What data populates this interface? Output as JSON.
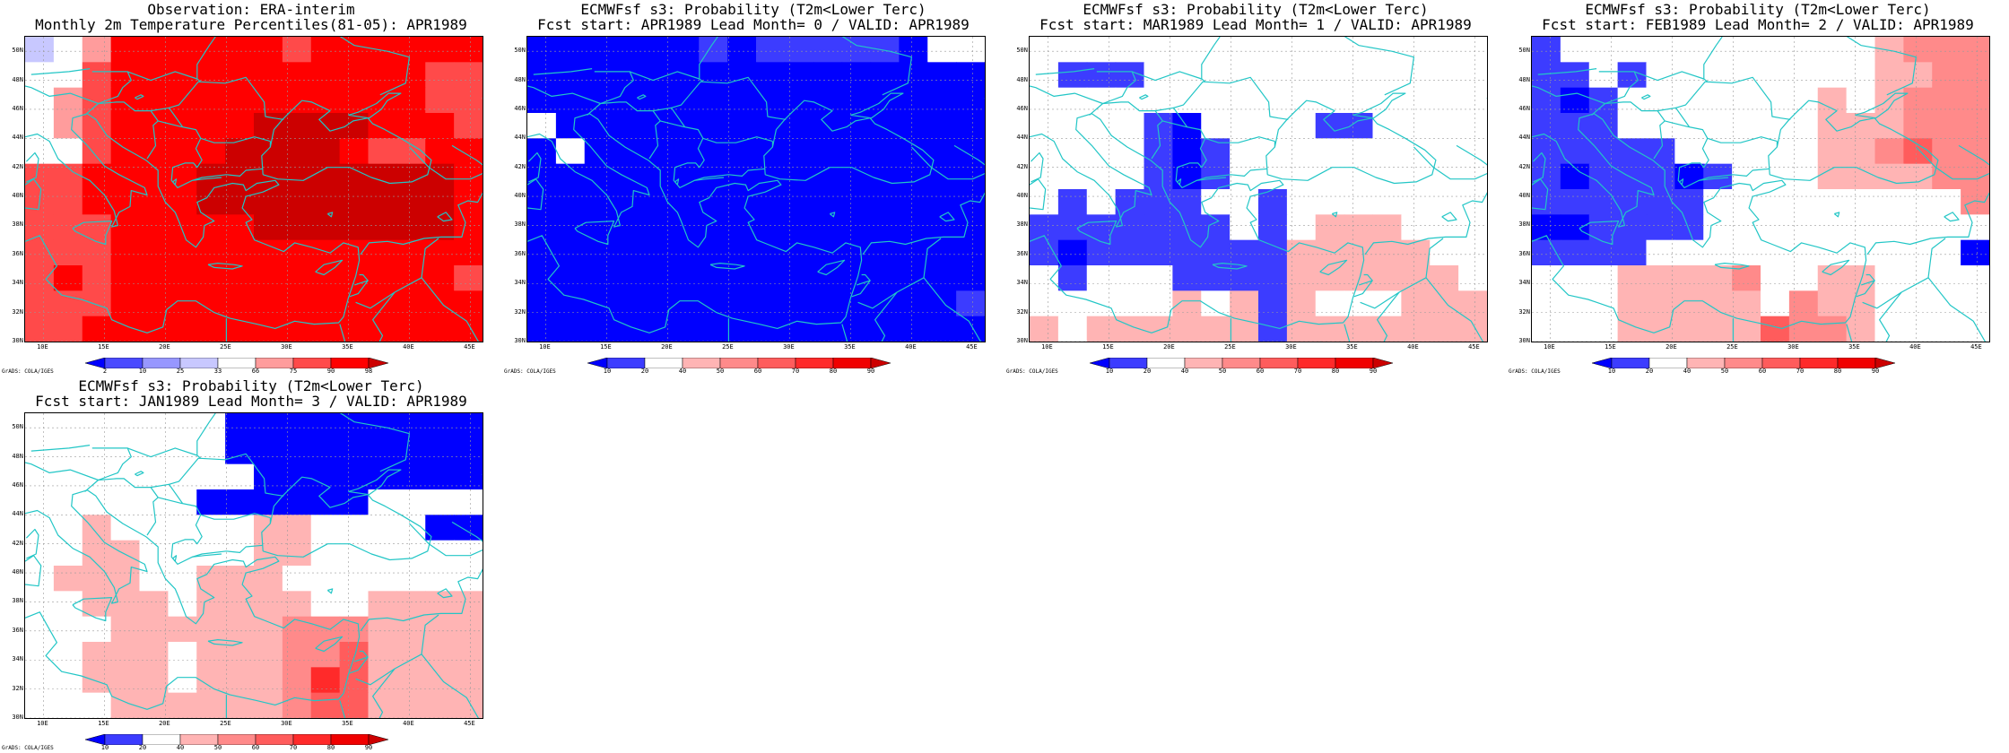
{
  "credit": "GrADS: COLA/IGES",
  "x_ticks": [
    "10E",
    "15E",
    "20E",
    "25E",
    "30E",
    "35E",
    "40E",
    "45E"
  ],
  "y_ticks": [
    "50N",
    "48N",
    "46N",
    "44N",
    "42N",
    "40N",
    "38N",
    "36N",
    "34N",
    "32N",
    "30N"
  ],
  "coastline_color": "#22c6c6",
  "colorbars": {
    "percentile": {
      "labels": [
        "2",
        "10",
        "25",
        "33",
        "66",
        "75",
        "90",
        "98"
      ],
      "colors": [
        "#0000ff",
        "#4a4aff",
        "#9797ff",
        "#c8c8ff",
        "#ffffff",
        "#ff9c9c",
        "#ff4a4a",
        "#ff0000",
        "#cc0000"
      ]
    },
    "probability": {
      "labels": [
        "10",
        "20",
        "40",
        "50",
        "60",
        "70",
        "80",
        "90"
      ],
      "colors": [
        "#0000ff",
        "#3c3cff",
        "#ffffff",
        "#ffb4b4",
        "#ff8a8a",
        "#ff5c5c",
        "#ff2a2a",
        "#f00000",
        "#cc0000"
      ]
    }
  },
  "panels": [
    {
      "title_line1": "Observation: ERA-interim",
      "title_line2": "Monthly 2m Temperature Percentiles(81-05): APR1989",
      "colorbar": "percentile",
      "grid": [
        [
          3,
          4,
          5,
          7,
          7,
          7,
          7,
          7,
          7,
          6,
          7,
          7,
          7,
          7,
          7,
          7
        ],
        [
          4,
          4,
          6,
          7,
          7,
          7,
          7,
          7,
          7,
          7,
          7,
          7,
          7,
          7,
          6,
          6
        ],
        [
          4,
          5,
          6,
          7,
          7,
          7,
          7,
          7,
          7,
          7,
          7,
          7,
          7,
          7,
          6,
          6
        ],
        [
          4,
          5,
          6,
          7,
          7,
          7,
          7,
          7,
          8,
          8,
          8,
          8,
          7,
          7,
          7,
          6
        ],
        [
          4,
          4,
          6,
          7,
          7,
          7,
          7,
          8,
          8,
          8,
          8,
          7,
          6,
          6,
          7,
          7
        ],
        [
          6,
          6,
          7,
          7,
          7,
          7,
          8,
          8,
          8,
          8,
          8,
          8,
          8,
          8,
          8,
          7
        ],
        [
          6,
          6,
          7,
          7,
          7,
          7,
          8,
          8,
          8,
          8,
          8,
          8,
          8,
          8,
          8,
          7
        ],
        [
          6,
          6,
          6,
          7,
          7,
          7,
          7,
          7,
          8,
          8,
          8,
          8,
          8,
          8,
          8,
          7
        ],
        [
          6,
          6,
          6,
          7,
          7,
          7,
          7,
          7,
          7,
          7,
          7,
          7,
          7,
          7,
          7,
          7
        ],
        [
          6,
          7,
          6,
          7,
          7,
          7,
          7,
          7,
          7,
          7,
          7,
          7,
          7,
          7,
          7,
          6
        ],
        [
          6,
          6,
          6,
          7,
          7,
          7,
          7,
          7,
          7,
          7,
          7,
          7,
          7,
          7,
          7,
          7
        ],
        [
          6,
          6,
          7,
          7,
          7,
          7,
          7,
          7,
          7,
          7,
          7,
          7,
          7,
          7,
          7,
          7
        ]
      ]
    },
    {
      "title_line1": "ECMWFsf s3: Probability (T2m<Lower Terc)",
      "title_line2": "Fcst start: APR1989  Lead Month= 0 / VALID: APR1989",
      "colorbar": "probability",
      "grid": [
        [
          0,
          0,
          0,
          0,
          0,
          0,
          1,
          0,
          1,
          1,
          1,
          1,
          1,
          0,
          2,
          2
        ],
        [
          0,
          0,
          0,
          0,
          0,
          0,
          0,
          0,
          0,
          0,
          0,
          0,
          0,
          0,
          0,
          0
        ],
        [
          0,
          0,
          0,
          0,
          0,
          0,
          0,
          0,
          0,
          0,
          0,
          0,
          0,
          0,
          0,
          0
        ],
        [
          2,
          0,
          0,
          0,
          0,
          0,
          0,
          0,
          0,
          0,
          0,
          0,
          0,
          0,
          0,
          0
        ],
        [
          0,
          2,
          0,
          0,
          0,
          0,
          0,
          0,
          0,
          0,
          0,
          0,
          0,
          0,
          0,
          0
        ],
        [
          0,
          0,
          0,
          0,
          0,
          0,
          0,
          0,
          0,
          0,
          0,
          0,
          0,
          0,
          0,
          0
        ],
        [
          0,
          0,
          0,
          0,
          0,
          0,
          0,
          0,
          0,
          0,
          0,
          0,
          0,
          0,
          0,
          0
        ],
        [
          0,
          0,
          0,
          0,
          0,
          0,
          0,
          0,
          0,
          0,
          0,
          0,
          0,
          0,
          0,
          0
        ],
        [
          0,
          0,
          0,
          0,
          0,
          0,
          0,
          0,
          0,
          0,
          0,
          0,
          0,
          0,
          0,
          0
        ],
        [
          0,
          0,
          0,
          0,
          0,
          0,
          0,
          0,
          0,
          0,
          0,
          0,
          0,
          0,
          0,
          0
        ],
        [
          0,
          0,
          0,
          0,
          0,
          0,
          0,
          0,
          0,
          0,
          0,
          0,
          0,
          0,
          0,
          1
        ],
        [
          0,
          0,
          0,
          0,
          0,
          0,
          0,
          0,
          0,
          0,
          0,
          0,
          0,
          0,
          0,
          0
        ]
      ]
    },
    {
      "title_line1": "ECMWFsf s3: Probability (T2m<Lower Terc)",
      "title_line2": "Fcst start: MAR1989  Lead Month= 1 / VALID: APR1989",
      "colorbar": "probability",
      "grid": [
        [
          2,
          2,
          2,
          2,
          2,
          2,
          2,
          2,
          2,
          2,
          2,
          2,
          2,
          2,
          2,
          2
        ],
        [
          2,
          1,
          1,
          1,
          2,
          2,
          2,
          2,
          2,
          2,
          2,
          2,
          2,
          2,
          2,
          2
        ],
        [
          2,
          2,
          2,
          2,
          2,
          2,
          2,
          2,
          2,
          2,
          2,
          2,
          2,
          2,
          2,
          2
        ],
        [
          2,
          2,
          2,
          2,
          1,
          0,
          2,
          2,
          2,
          2,
          1,
          1,
          2,
          2,
          2,
          2
        ],
        [
          2,
          2,
          2,
          2,
          1,
          0,
          1,
          2,
          2,
          2,
          2,
          2,
          2,
          2,
          2,
          2
        ],
        [
          2,
          2,
          2,
          2,
          1,
          0,
          1,
          2,
          2,
          2,
          2,
          2,
          2,
          2,
          2,
          2
        ],
        [
          2,
          1,
          2,
          1,
          1,
          1,
          2,
          2,
          1,
          2,
          2,
          2,
          2,
          2,
          2,
          2
        ],
        [
          1,
          1,
          1,
          1,
          1,
          1,
          1,
          2,
          1,
          2,
          3,
          3,
          3,
          2,
          2,
          2
        ],
        [
          1,
          0,
          1,
          1,
          1,
          1,
          1,
          1,
          1,
          3,
          3,
          3,
          3,
          3,
          2,
          2
        ],
        [
          2,
          1,
          2,
          2,
          2,
          1,
          1,
          1,
          1,
          3,
          3,
          3,
          3,
          3,
          3,
          2
        ],
        [
          2,
          2,
          2,
          2,
          2,
          3,
          2,
          3,
          1,
          3,
          2,
          2,
          2,
          3,
          3,
          3
        ],
        [
          3,
          2,
          3,
          3,
          3,
          3,
          3,
          3,
          1,
          3,
          3,
          3,
          3,
          3,
          3,
          3
        ]
      ]
    },
    {
      "title_line1": "ECMWFsf s3: Probability (T2m<Lower Terc)",
      "title_line2": "Fcst start: FEB1989  Lead Month= 2 / VALID: APR1989",
      "colorbar": "probability",
      "grid": [
        [
          1,
          2,
          2,
          2,
          2,
          2,
          2,
          2,
          2,
          2,
          2,
          2,
          3,
          4,
          4,
          4
        ],
        [
          1,
          1,
          2,
          1,
          2,
          2,
          2,
          2,
          2,
          2,
          2,
          2,
          3,
          3,
          4,
          4
        ],
        [
          1,
          0,
          1,
          2,
          2,
          2,
          2,
          2,
          2,
          2,
          3,
          2,
          3,
          4,
          4,
          4
        ],
        [
          1,
          1,
          1,
          2,
          2,
          2,
          2,
          2,
          2,
          2,
          3,
          3,
          3,
          4,
          4,
          4
        ],
        [
          1,
          1,
          1,
          1,
          1,
          2,
          2,
          2,
          2,
          2,
          3,
          3,
          4,
          5,
          4,
          4
        ],
        [
          1,
          0,
          1,
          1,
          1,
          0,
          1,
          2,
          2,
          2,
          3,
          3,
          3,
          3,
          4,
          4
        ],
        [
          1,
          1,
          1,
          1,
          1,
          1,
          2,
          2,
          2,
          2,
          2,
          2,
          2,
          2,
          2,
          4
        ],
        [
          0,
          0,
          1,
          1,
          1,
          1,
          2,
          2,
          2,
          2,
          2,
          2,
          2,
          2,
          2,
          2
        ],
        [
          1,
          1,
          1,
          1,
          2,
          2,
          2,
          2,
          2,
          2,
          2,
          2,
          2,
          2,
          2,
          0
        ],
        [
          2,
          2,
          2,
          3,
          3,
          3,
          3,
          4,
          2,
          2,
          3,
          3,
          2,
          2,
          2,
          2
        ],
        [
          2,
          2,
          2,
          3,
          3,
          3,
          3,
          3,
          2,
          4,
          3,
          3,
          2,
          2,
          2,
          2
        ],
        [
          2,
          2,
          2,
          3,
          3,
          3,
          3,
          3,
          5,
          4,
          4,
          3,
          2,
          2,
          2,
          2
        ]
      ]
    },
    {
      "title_line1": "ECMWFsf s3: Probability (T2m<Lower Terc)",
      "title_line2": "Fcst start: JAN1989  Lead Month= 3 / VALID: APR1989",
      "colorbar": "probability",
      "grid": [
        [
          2,
          2,
          2,
          2,
          2,
          2,
          2,
          0,
          0,
          0,
          0,
          0,
          0,
          0,
          0,
          0
        ],
        [
          2,
          2,
          2,
          2,
          2,
          2,
          2,
          0,
          0,
          0,
          0,
          0,
          0,
          0,
          0,
          0
        ],
        [
          2,
          2,
          2,
          2,
          2,
          2,
          2,
          2,
          0,
          0,
          0,
          0,
          0,
          0,
          0,
          0
        ],
        [
          2,
          2,
          2,
          2,
          2,
          2,
          0,
          0,
          0,
          0,
          0,
          0,
          2,
          2,
          2,
          2
        ],
        [
          2,
          2,
          3,
          2,
          2,
          2,
          2,
          2,
          3,
          3,
          2,
          2,
          2,
          2,
          0,
          0
        ],
        [
          2,
          2,
          3,
          3,
          2,
          2,
          2,
          2,
          3,
          3,
          2,
          2,
          2,
          2,
          2,
          2
        ],
        [
          2,
          3,
          3,
          3,
          2,
          2,
          3,
          3,
          3,
          2,
          2,
          2,
          2,
          2,
          2,
          2
        ],
        [
          2,
          2,
          3,
          3,
          3,
          2,
          3,
          3,
          3,
          3,
          2,
          2,
          3,
          3,
          3,
          3
        ],
        [
          2,
          2,
          2,
          3,
          3,
          3,
          3,
          3,
          3,
          4,
          4,
          4,
          3,
          3,
          3,
          3
        ],
        [
          2,
          2,
          3,
          3,
          3,
          2,
          3,
          3,
          3,
          4,
          4,
          5,
          3,
          3,
          3,
          3
        ],
        [
          2,
          2,
          3,
          3,
          3,
          2,
          3,
          3,
          3,
          4,
          6,
          5,
          3,
          3,
          3,
          3
        ],
        [
          2,
          2,
          2,
          3,
          3,
          3,
          3,
          3,
          3,
          4,
          5,
          5,
          3,
          3,
          3,
          3
        ]
      ]
    }
  ]
}
